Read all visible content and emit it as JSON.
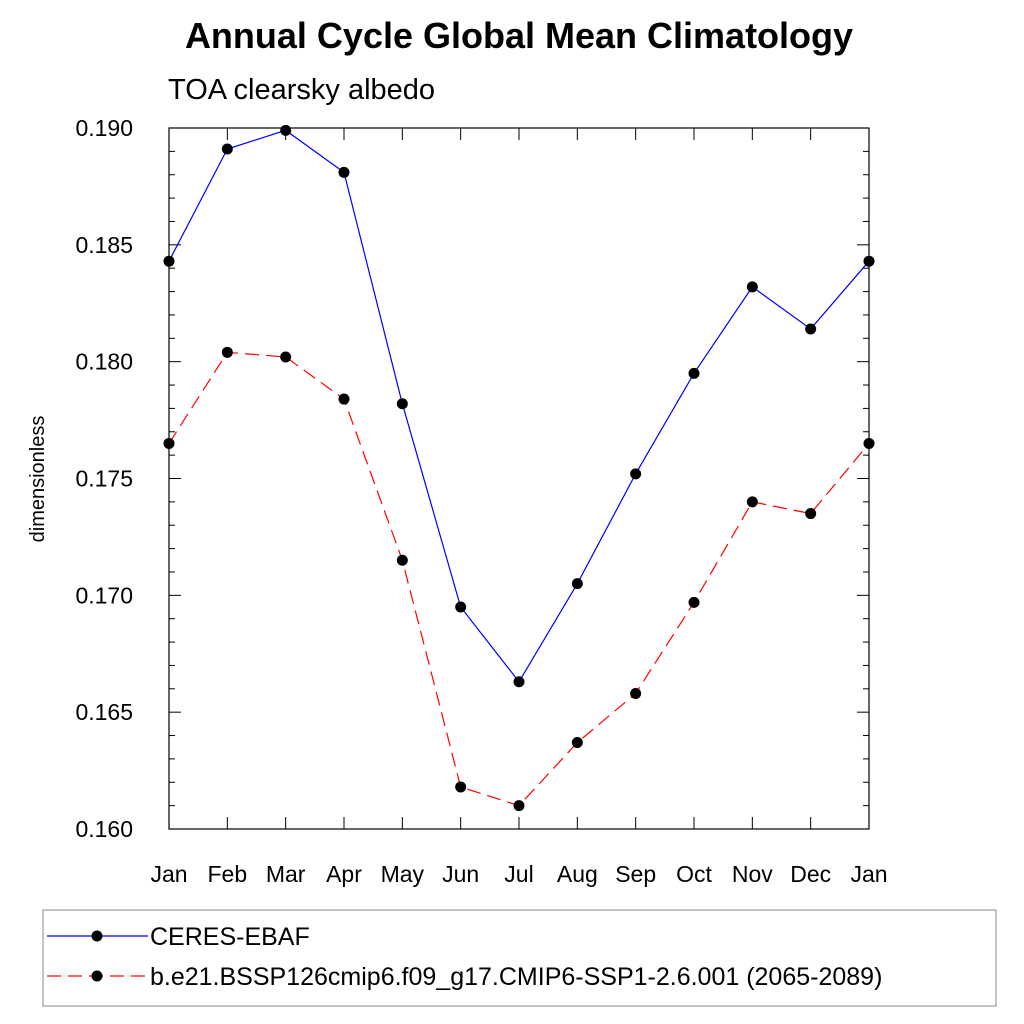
{
  "chart_data": {
    "type": "line",
    "title": "Annual Cycle Global Mean Climatology",
    "subtitle": "TOA clearsky albedo",
    "xlabel": "",
    "ylabel": "dimensionless",
    "categories": [
      "Jan",
      "Feb",
      "Mar",
      "Apr",
      "May",
      "Jun",
      "Jul",
      "Aug",
      "Sep",
      "Oct",
      "Nov",
      "Dec",
      "Jan"
    ],
    "ylim": [
      0.16,
      0.19
    ],
    "yticks": [
      "0.160",
      "0.165",
      "0.170",
      "0.175",
      "0.180",
      "0.185",
      "0.190"
    ],
    "grid": false,
    "legend_position": "bottom",
    "series": [
      {
        "name": "CERES-EBAF",
        "color": "#0000ff",
        "line_style": "solid",
        "marker": "filled-circle",
        "values": [
          0.1843,
          0.1891,
          0.1899,
          0.1881,
          0.1782,
          0.1695,
          0.1663,
          0.1705,
          0.1752,
          0.1795,
          0.1832,
          0.1814,
          0.1843
        ]
      },
      {
        "name": "b.e21.BSSP126cmip6.f09_g17.CMIP6-SSP1-2.6.001 (2065-2089)",
        "color": "#ff0000",
        "line_style": "dashed",
        "marker": "filled-circle",
        "values": [
          0.1765,
          0.1804,
          0.1802,
          0.1784,
          0.1715,
          0.1618,
          0.161,
          0.1637,
          0.1658,
          0.1697,
          0.174,
          0.1735,
          0.1765
        ]
      }
    ]
  }
}
